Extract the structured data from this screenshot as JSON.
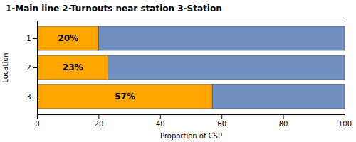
{
  "chart_data": {
    "type": "bar",
    "orientation": "horizontal",
    "stacked": true,
    "title": "1-Main line 2-Turnouts near station 3-Station",
    "xlabel": "Proportion of CSP",
    "ylabel": "Location",
    "categories": [
      "1",
      "2",
      "3"
    ],
    "series": [
      {
        "color": "#ffa500",
        "values": [
          20,
          23,
          57
        ],
        "value_labels": [
          "20%",
          "23%",
          "57%"
        ],
        "data_labels": true
      },
      {
        "color": "#7090c0",
        "values": [
          80,
          77,
          43
        ]
      }
    ],
    "xlim": [
      0,
      100
    ],
    "xticks": [
      0,
      20,
      40,
      60,
      80,
      100
    ],
    "grid": false
  }
}
